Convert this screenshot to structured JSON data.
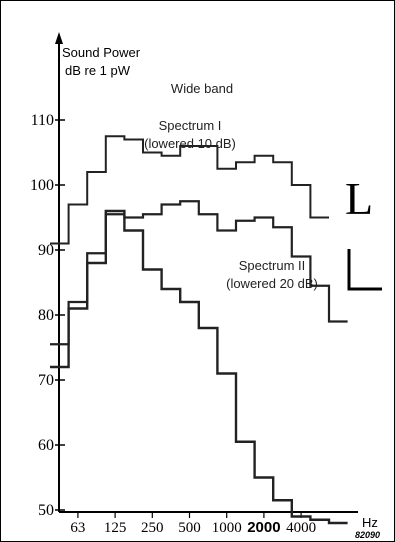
{
  "chart_data": {
    "type": "line",
    "step": true,
    "ylabel_line1": "Sound Power",
    "ylabel_line2": "dB re 1 pW",
    "xunit": "Hz",
    "figure_code": "82090",
    "side_mark": "L",
    "y_ticks": [
      "110",
      "100",
      "90",
      "80",
      "70",
      "60",
      "50"
    ],
    "y_tick_values": [
      110,
      100,
      90,
      80,
      70,
      60,
      50
    ],
    "ylim": [
      48,
      114
    ],
    "x_ticks": [
      "63",
      "125",
      "250",
      "500",
      "1000",
      "2000",
      "4000"
    ],
    "x_tick_octaves": [
      1,
      3,
      5,
      7,
      9,
      11,
      13
    ],
    "x_octave_range": [
      -0.5,
      15.5
    ],
    "series": [
      {
        "name": "Wide band",
        "annotation": [
          "Wide band"
        ],
        "x_octaves": [
          0,
          1,
          2,
          3,
          4,
          5,
          6,
          7,
          8,
          9,
          10,
          11,
          12,
          13,
          14,
          15
        ],
        "values": [
          91,
          97,
          102,
          107.5,
          107,
          105,
          104.5,
          106,
          106,
          102.5,
          103.5,
          104.5,
          103.5,
          100,
          95,
          null
        ]
      },
      {
        "name": "Spectrum I",
        "annotation": [
          "Spectrum I",
          "(lowered 10 dB)"
        ],
        "x_octaves": [
          0,
          1,
          2,
          3,
          4,
          5,
          6,
          7,
          8,
          9,
          10,
          11,
          12,
          13,
          14,
          15
        ],
        "values": [
          75.5,
          82,
          89.5,
          95.5,
          95,
          95.5,
          97,
          97.5,
          95.5,
          93,
          94.5,
          95,
          93.5,
          89,
          84.5,
          79
        ]
      },
      {
        "name": "Spectrum II",
        "annotation": [
          "Spectrum II",
          "(lowered 20 dB)"
        ],
        "x_octaves": [
          0,
          1,
          2,
          3,
          4,
          5,
          6,
          7,
          8,
          9,
          10,
          11,
          12,
          13,
          14,
          15
        ],
        "values": [
          72,
          81,
          88,
          96,
          93,
          87,
          84,
          82,
          78,
          71,
          60.5,
          55,
          51.5,
          49,
          48.5,
          48
        ]
      }
    ],
    "grid": false
  }
}
